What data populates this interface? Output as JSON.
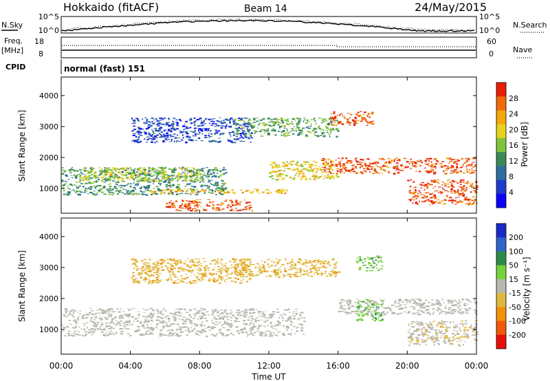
{
  "header": {
    "title": "Hokkaido (fitACF)",
    "beam": "Beam 14",
    "date": "24/May/2015"
  },
  "noise_panel": {
    "left_label": "N.Sky",
    "right_label": "N.Search",
    "left_ticks": [
      "10^5",
      "10^0"
    ],
    "right_ticks": [
      "10^5",
      "10^0"
    ]
  },
  "freq_panel": {
    "left_label_line1": "Freq.",
    "left_label_line2": "[MHz]",
    "left_ticks": [
      "18",
      "8"
    ],
    "right_label": "Nave",
    "right_ticks": [
      "60",
      "0"
    ]
  },
  "cpid_panel": {
    "label": "CPID",
    "mode_text": "normal (fast) 151"
  },
  "time_axis": {
    "label": "Time UT",
    "ticks": [
      "00:00",
      "04:00",
      "08:00",
      "12:00",
      "16:00",
      "20:00",
      "00:00"
    ]
  },
  "range_axis": {
    "label": "Slant Range [km]",
    "ticks": [
      "1000",
      "2000",
      "3000",
      "4000"
    ]
  },
  "colors": {
    "power": [
      "#0a00ff",
      "#1e3cc8",
      "#2e6f9e",
      "#3b8a55",
      "#7fc43a",
      "#e6d21e",
      "#f2a70c",
      "#f06a0a",
      "#e81e0a"
    ],
    "velocity": [
      "#1a2bc4",
      "#2e64c8",
      "#2e8a4a",
      "#76d23a",
      "#b8b8b0",
      "#e0b840",
      "#f2900a",
      "#f05a0a",
      "#e80f0a"
    ]
  },
  "chart_data": [
    {
      "type": "heatmap",
      "panel": "power",
      "xlabel": "Time UT",
      "ylabel": "Slant Range [km]",
      "xlim": [
        0,
        24
      ],
      "ylim": [
        200,
        4600
      ],
      "colorbar": {
        "label": "Power [dB]",
        "ticks": [
          "4",
          "8",
          "12",
          "16",
          "20",
          "24",
          "28"
        ],
        "range": [
          0,
          32
        ]
      },
      "echo_regions": [
        {
          "t": [
            0,
            9.5
          ],
          "r": [
            800,
            1700
          ],
          "value": 12
        },
        {
          "t": [
            1,
            8
          ],
          "r": [
            1250,
            1700
          ],
          "value": 18
        },
        {
          "t": [
            5,
            13
          ],
          "r": [
            850,
            1000
          ],
          "value": 22
        },
        {
          "t": [
            6,
            11
          ],
          "r": [
            300,
            650
          ],
          "value": 28
        },
        {
          "t": [
            4,
            11
          ],
          "r": [
            2500,
            3300
          ],
          "value": 6
        },
        {
          "t": [
            10,
            16
          ],
          "r": [
            2700,
            3300
          ],
          "value": 14
        },
        {
          "t": [
            12,
            16
          ],
          "r": [
            1300,
            1900
          ],
          "value": 20
        },
        {
          "t": [
            15,
            24
          ],
          "r": [
            1500,
            2000
          ],
          "value": 28
        },
        {
          "t": [
            15.5,
            18
          ],
          "r": [
            3050,
            3500
          ],
          "value": 28
        },
        {
          "t": [
            20,
            24
          ],
          "r": [
            500,
            1300
          ],
          "value": 28
        }
      ]
    },
    {
      "type": "heatmap",
      "panel": "velocity",
      "xlabel": "Time UT",
      "ylabel": "Slant Range [km]",
      "xlim": [
        0,
        24
      ],
      "ylim": [
        200,
        4600
      ],
      "colorbar": {
        "label": "Velocity [m s⁻¹]",
        "ticks": [
          "200",
          "100",
          "50",
          "15",
          "-15",
          "-50",
          "-100",
          "-200"
        ]
      },
      "echo_regions": [
        {
          "t": [
            0,
            14
          ],
          "r": [
            800,
            1700
          ],
          "value": 0
        },
        {
          "t": [
            4,
            11
          ],
          "r": [
            2500,
            3300
          ],
          "value": -40
        },
        {
          "t": [
            10,
            16
          ],
          "r": [
            2700,
            3300
          ],
          "value": -40
        },
        {
          "t": [
            16,
            24
          ],
          "r": [
            1500,
            2000
          ],
          "value": 0
        },
        {
          "t": [
            17,
            18.5
          ],
          "r": [
            1300,
            2000
          ],
          "value": 40
        },
        {
          "t": [
            17,
            18.5
          ],
          "r": [
            2900,
            3400
          ],
          "value": 40
        },
        {
          "t": [
            20,
            24
          ],
          "r": [
            500,
            1300
          ],
          "value": -10
        }
      ]
    }
  ]
}
